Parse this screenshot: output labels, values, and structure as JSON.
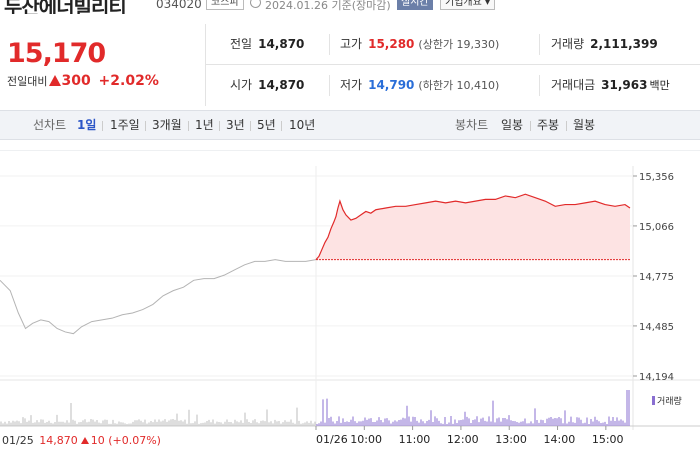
{
  "header": {
    "stock_name": "두산에너빌리티",
    "stock_code": "034020",
    "market": "코스피",
    "date_basis": "2024.01.26 기준(장마감)",
    "realtime": "실시간",
    "company_info": "기업개요"
  },
  "price": {
    "current": "15,170",
    "compare_label": "전일대비",
    "change": "300",
    "change_pct": "+2.02%"
  },
  "info": {
    "prev_close": {
      "label": "전일",
      "value": "14,870"
    },
    "high": {
      "label": "고가",
      "value": "15,280",
      "sub": "(상한가 19,330)"
    },
    "volume": {
      "label": "거래량",
      "value": "2,111,399"
    },
    "open": {
      "label": "시가",
      "value": "14,870"
    },
    "low": {
      "label": "저가",
      "value": "14,790",
      "sub": "(하한가 10,410)"
    },
    "amount": {
      "label": "거래대금",
      "value": "31,963",
      "unit": "백만"
    }
  },
  "toolbar": {
    "line_chart_label": "선차트",
    "periods": [
      "1일",
      "1주일",
      "3개월",
      "1년",
      "3년",
      "5년",
      "10년"
    ],
    "active_period": "1일",
    "candle_label": "봉차트",
    "candles": [
      "일봉",
      "주봉",
      "월봉"
    ]
  },
  "colors": {
    "up": "#e12a2a",
    "down": "#2a6ed8",
    "active": "#2b55c7",
    "volume": "#8a6fd1"
  },
  "chart_data": {
    "type": "line",
    "y_ticks": [
      "15,356",
      "15,066",
      "14,775",
      "14,485",
      "14,194"
    ],
    "x_ticks": [
      "01/26",
      "10:00",
      "11:00",
      "12:00",
      "13:00",
      "14:00",
      "15:00"
    ],
    "ylim": [
      14194,
      15356
    ],
    "volume_legend": "거래량",
    "prev_day_summary": {
      "date": "01/25",
      "close": "14,870",
      "change": "10",
      "change_pct": "(+0.07%)"
    },
    "prev_day_series": [
      [
        0,
        14750
      ],
      [
        10,
        14690
      ],
      [
        18,
        14560
      ],
      [
        25,
        14470
      ],
      [
        32,
        14500
      ],
      [
        40,
        14520
      ],
      [
        48,
        14510
      ],
      [
        56,
        14470
      ],
      [
        64,
        14450
      ],
      [
        72,
        14440
      ],
      [
        80,
        14480
      ],
      [
        90,
        14510
      ],
      [
        100,
        14520
      ],
      [
        110,
        14530
      ],
      [
        120,
        14550
      ],
      [
        130,
        14560
      ],
      [
        140,
        14580
      ],
      [
        150,
        14610
      ],
      [
        160,
        14660
      ],
      [
        170,
        14690
      ],
      [
        180,
        14710
      ],
      [
        190,
        14750
      ],
      [
        200,
        14760
      ],
      [
        210,
        14760
      ],
      [
        220,
        14780
      ],
      [
        230,
        14810
      ],
      [
        240,
        14840
      ],
      [
        250,
        14860
      ],
      [
        260,
        14860
      ],
      [
        270,
        14870
      ],
      [
        280,
        14860
      ],
      [
        290,
        14860
      ],
      [
        300,
        14860
      ],
      [
        310,
        14870
      ]
    ],
    "today_series": [
      [
        0,
        14870
      ],
      [
        3,
        14890
      ],
      [
        6,
        14930
      ],
      [
        9,
        14970
      ],
      [
        12,
        15000
      ],
      [
        15,
        15050
      ],
      [
        18,
        15090
      ],
      [
        20,
        15120
      ],
      [
        22,
        15170
      ],
      [
        24,
        15210
      ],
      [
        27,
        15160
      ],
      [
        30,
        15130
      ],
      [
        35,
        15100
      ],
      [
        40,
        15110
      ],
      [
        45,
        15130
      ],
      [
        50,
        15150
      ],
      [
        55,
        15140
      ],
      [
        60,
        15160
      ],
      [
        70,
        15170
      ],
      [
        80,
        15180
      ],
      [
        90,
        15180
      ],
      [
        100,
        15190
      ],
      [
        110,
        15200
      ],
      [
        120,
        15210
      ],
      [
        130,
        15200
      ],
      [
        140,
        15210
      ],
      [
        150,
        15200
      ],
      [
        160,
        15210
      ],
      [
        170,
        15220
      ],
      [
        180,
        15220
      ],
      [
        190,
        15240
      ],
      [
        200,
        15230
      ],
      [
        210,
        15250
      ],
      [
        220,
        15230
      ],
      [
        230,
        15210
      ],
      [
        240,
        15180
      ],
      [
        250,
        15190
      ],
      [
        260,
        15190
      ],
      [
        270,
        15200
      ],
      [
        280,
        15210
      ],
      [
        290,
        15190
      ],
      [
        300,
        15180
      ],
      [
        310,
        15190
      ],
      [
        315,
        15170
      ]
    ]
  }
}
